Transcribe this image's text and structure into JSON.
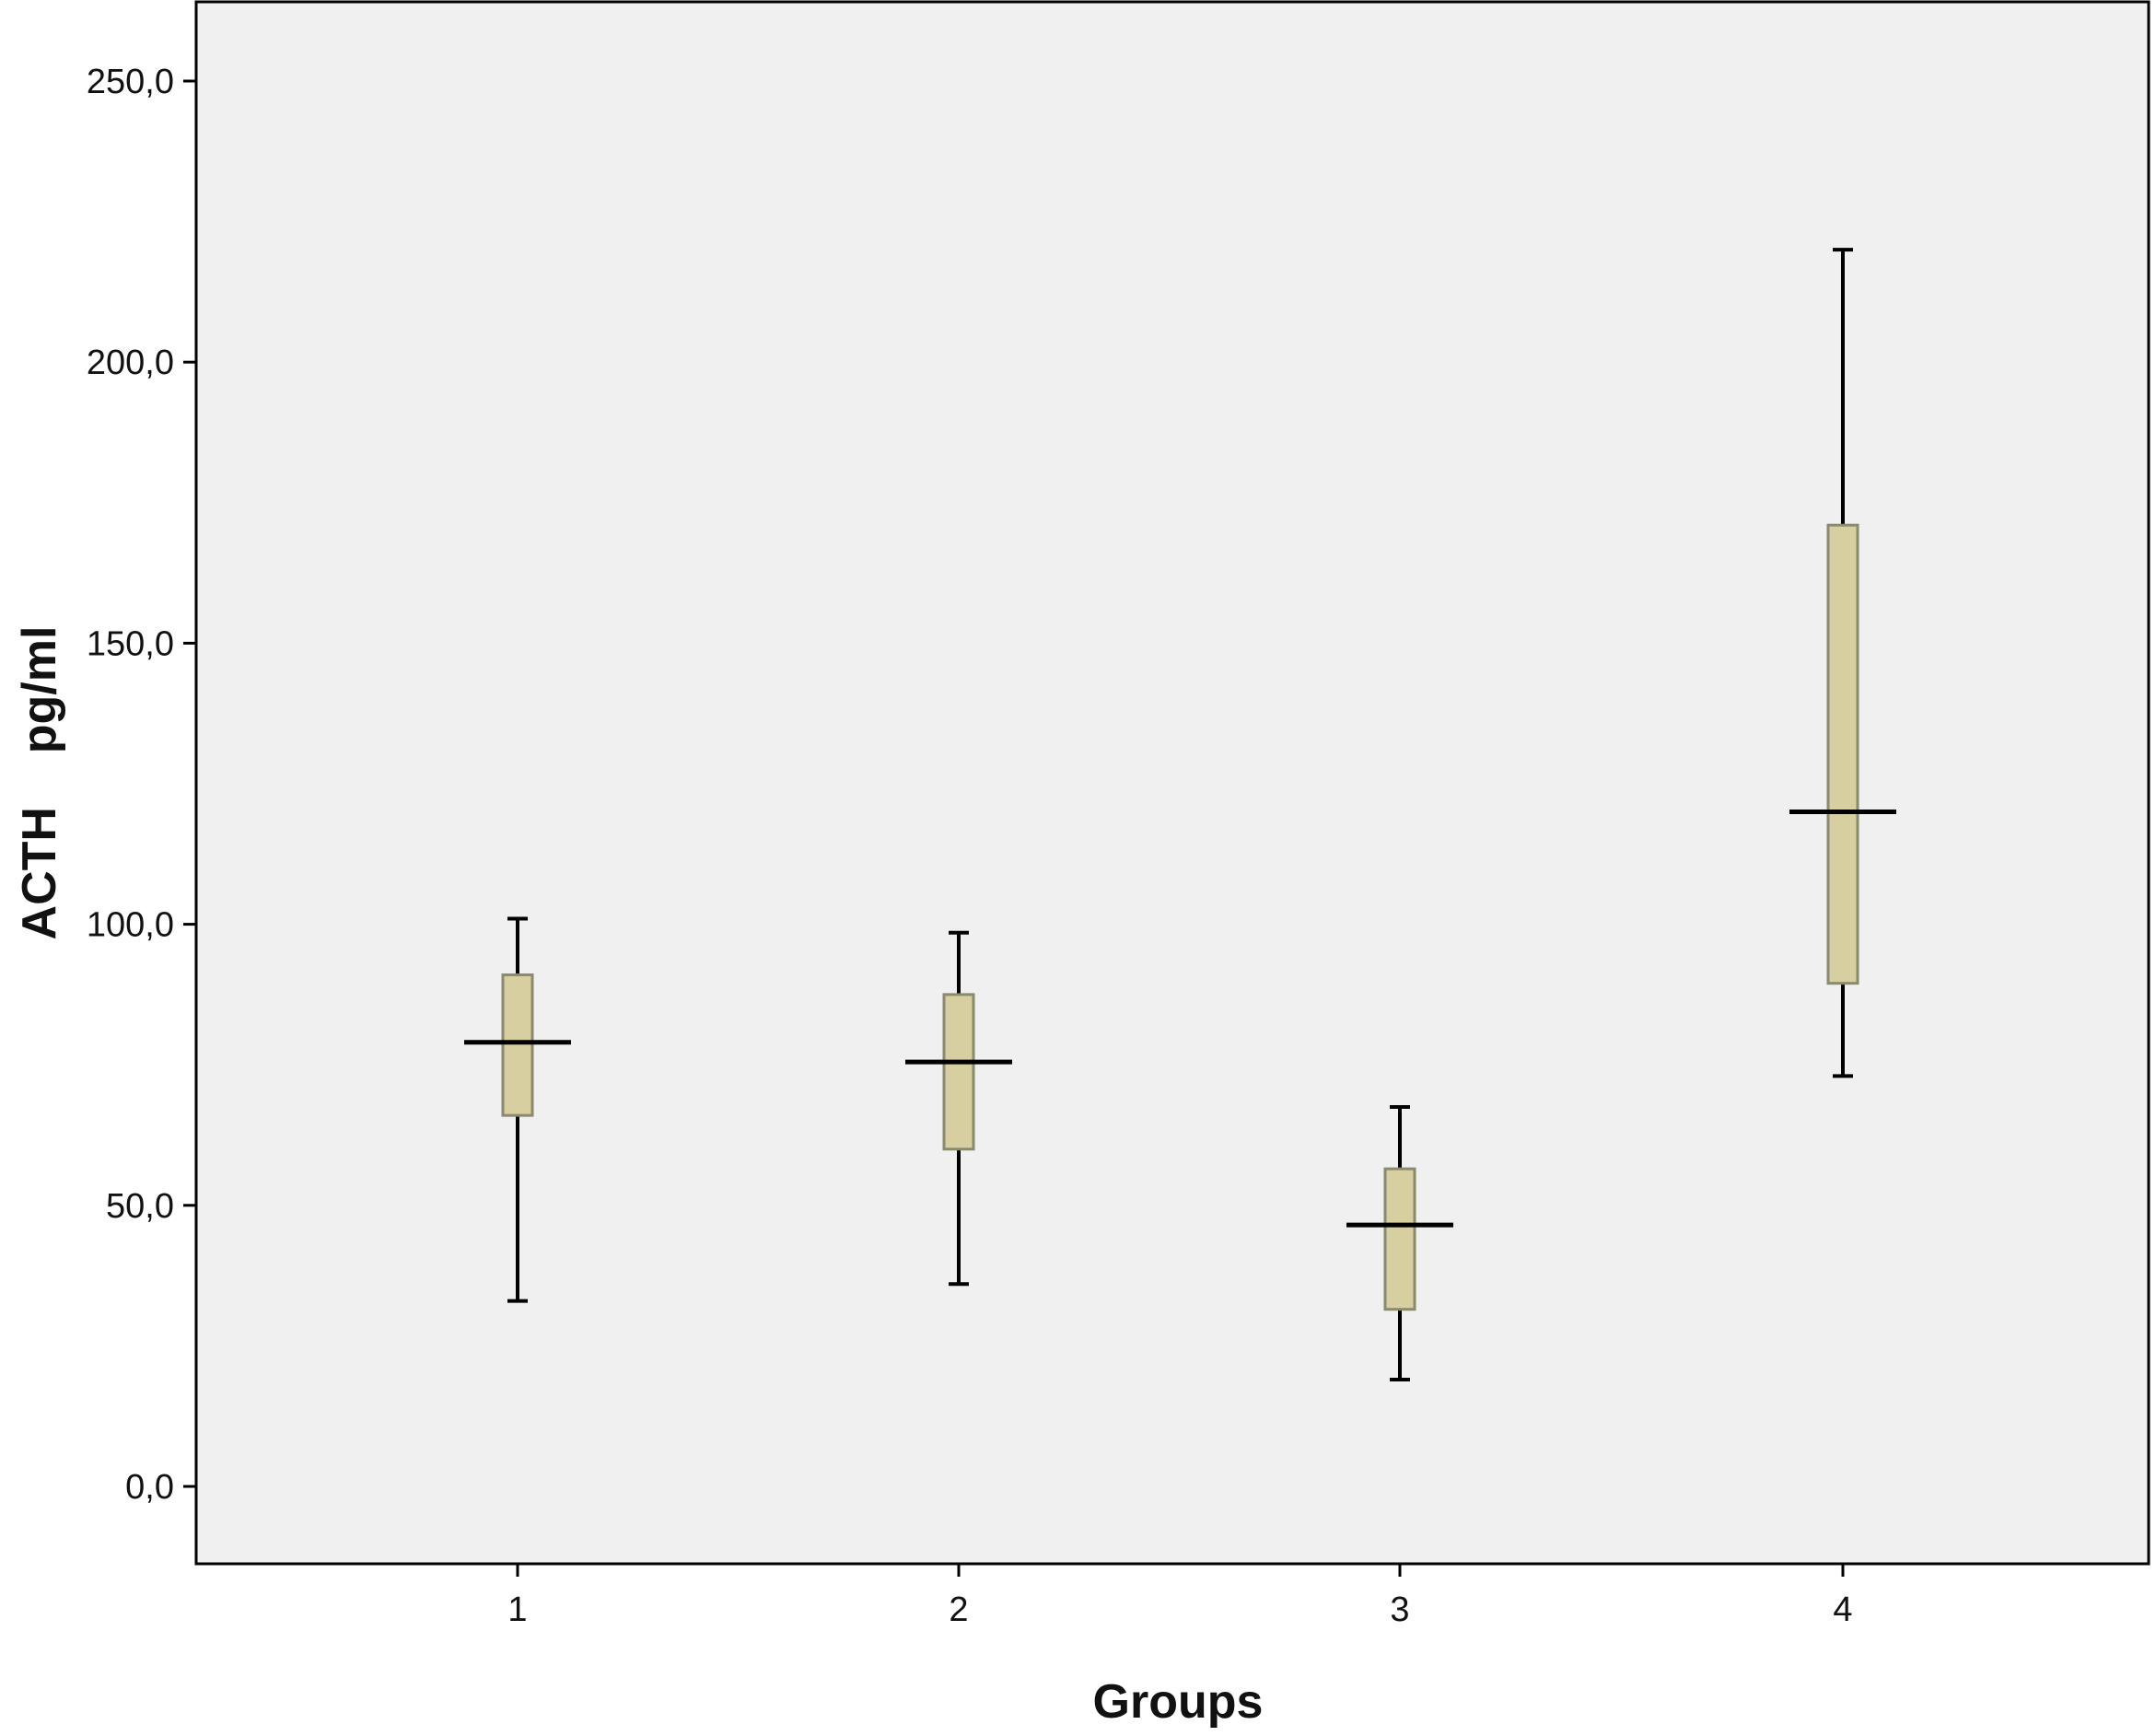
{
  "chart_data": {
    "type": "boxplot",
    "title": "",
    "xlabel": "Groups",
    "ylabel": "ACTH    pg/ml",
    "ylim": [
      -14,
      264
    ],
    "yticks": [
      0,
      50,
      100,
      150,
      200,
      250
    ],
    "ytick_labels": [
      "0,0",
      "50,0",
      "100,0",
      "150,0",
      "200,0",
      "250,0"
    ],
    "categories": [
      "1",
      "2",
      "3",
      "4"
    ],
    "boxes": [
      {
        "group": "1",
        "whisker_low": 33,
        "q1": 66,
        "median": 79,
        "q3": 91,
        "whisker_high": 101
      },
      {
        "group": "2",
        "whisker_low": 36,
        "q1": 60,
        "median": 75.5,
        "q3": 87.5,
        "whisker_high": 98.5
      },
      {
        "group": "3",
        "whisker_low": 19,
        "q1": 31.5,
        "median": 46.5,
        "q3": 56.5,
        "whisker_high": 67.5
      },
      {
        "group": "4",
        "whisker_low": 73,
        "q1": 89.5,
        "median": 120,
        "q3": 171,
        "whisker_high": 220
      }
    ],
    "grid": false,
    "legend": "none",
    "colors": {
      "plot_background": "#f0f0f0",
      "box_fill": "#d8cfa0",
      "box_stroke": "#8a8a6e",
      "line": "#000000"
    }
  }
}
